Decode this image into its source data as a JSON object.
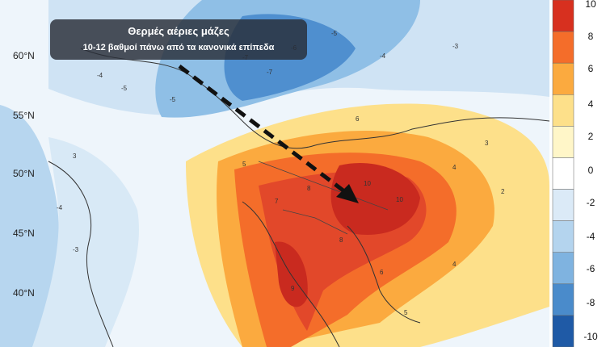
{
  "callout": {
    "title": "Θερμές αέριες μάζες",
    "subtitle": "10-12 βαθμοί πάνω από τα κανονικά επίπεδα"
  },
  "latitude_labels": [
    "60°N",
    "55°N",
    "50°N",
    "45°N",
    "40°N"
  ],
  "colorbar": {
    "labels": [
      "10",
      "8",
      "6",
      "4",
      "2",
      "0",
      "-2",
      "-4",
      "-6",
      "-8",
      "-10"
    ],
    "colors": [
      "#d7301f",
      "#f46d2a",
      "#fbaa3f",
      "#fde08a",
      "#fff6c8",
      "#ffffff",
      "#dbeaf7",
      "#b4d4ee",
      "#7fb3e0",
      "#4a8bcb",
      "#1f5aa6"
    ]
  },
  "icons": {
    "arrow": "dashed-arrow-icon"
  }
}
